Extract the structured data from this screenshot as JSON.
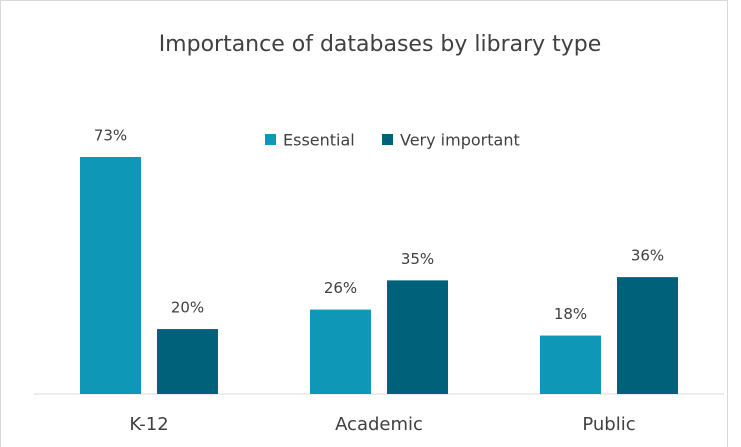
{
  "chart_data": {
    "type": "bar",
    "title": "Importance of databases by library type",
    "categories": [
      "K-12",
      "Academic",
      "Public"
    ],
    "series": [
      {
        "name": "Essential",
        "color": "#0f97b7",
        "values": [
          73,
          26,
          18
        ],
        "value_labels": [
          "73%",
          "26%",
          "18%"
        ]
      },
      {
        "name": "Very important",
        "color": "#00627a",
        "values": [
          20,
          35,
          36
        ],
        "value_labels": [
          "20%",
          "35%",
          "36%"
        ]
      }
    ],
    "legend": "top"
  }
}
